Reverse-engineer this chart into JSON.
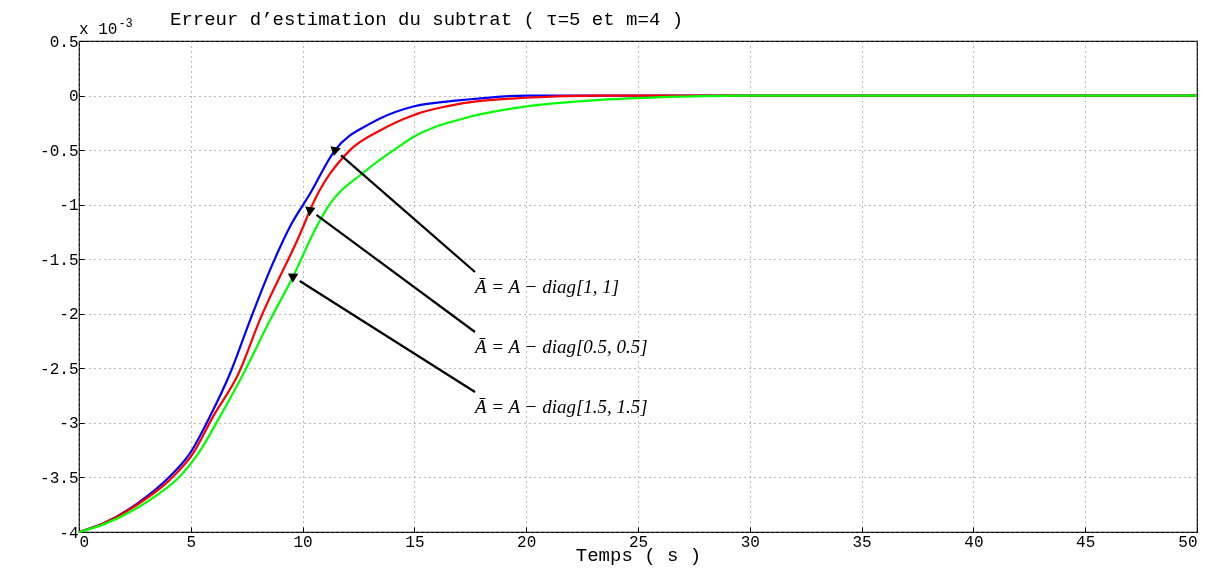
{
  "chart_data": {
    "type": "line",
    "title": "Erreur d’estimation du subtrat ( τ=5  et m=4 )",
    "xlabel": "Temps ( s )",
    "xlim": [
      0,
      50
    ],
    "ylim": [
      -4,
      0.5
    ],
    "xticks": [
      0,
      5,
      10,
      15,
      20,
      25,
      30,
      35,
      40,
      45,
      50
    ],
    "yticks": [
      0.5,
      0,
      -0.5,
      -1,
      -1.5,
      -2,
      -2.5,
      -3,
      -3.5,
      -4
    ],
    "grid": true,
    "line_style": "solid",
    "series": [
      {
        "color": "#0000ff",
        "x": [
          0,
          1.1,
          2.6,
          4.07,
          4.96,
          5.86,
          6.75,
          7.65,
          8.54,
          9.44,
          10.33,
          11.45,
          13.0,
          13.46,
          14.95,
          17.2,
          20,
          25,
          50
        ],
        "values": [
          -4,
          -3.92,
          -3.74,
          -3.49,
          -3.28,
          -2.94,
          -2.55,
          -2.06,
          -1.6,
          -1.2,
          -0.9,
          -0.5,
          -0.26,
          -0.21,
          -0.1,
          -0.04,
          0,
          0,
          0
        ]
      },
      {
        "color": "#ff0000",
        "x": [
          0,
          1.1,
          2.6,
          4.07,
          5.1,
          6.0,
          7.13,
          8.08,
          10.03,
          10.33,
          12.12,
          13.46,
          14.95,
          17.2,
          20,
          23.3,
          27,
          50
        ],
        "values": [
          -4,
          -3.92,
          -3.75,
          -3.52,
          -3.28,
          -2.94,
          -2.55,
          -2.06,
          -1.2,
          -1.05,
          -0.5,
          -0.32,
          -0.18,
          -0.07,
          -0.02,
          0,
          0,
          0
        ]
      },
      {
        "color": "#00ff00",
        "x": [
          0,
          1.1,
          2.6,
          3.5,
          4.52,
          5.34,
          6.31,
          7.35,
          8.54,
          9.57,
          10.63,
          11.2,
          12.7,
          14.36,
          14.95,
          17.2,
          20,
          23.3,
          27,
          30,
          50
        ],
        "values": [
          -4,
          -3.93,
          -3.78,
          -3.66,
          -3.49,
          -3.28,
          -2.94,
          -2.55,
          -2.06,
          -1.66,
          -1.2,
          -1.0,
          -0.71,
          -0.46,
          -0.38,
          -0.21,
          -0.1,
          -0.04,
          -0.01,
          0,
          0
        ]
      }
    ],
    "annotations": [
      "x 10$^{-3}$",
      {
        "text": "Ā = A − diag[1, 1]",
        "x": 11.45,
        "y": -0.5
      },
      {
        "text": "Ā = A − diag[0.5, 0.5]",
        "x": 10.33,
        "y": -1.05
      },
      {
        "text": "Ā = A − diag[1.5, 1.5]",
        "x": 9.57,
        "y": -1.66
      }
    ]
  }
}
